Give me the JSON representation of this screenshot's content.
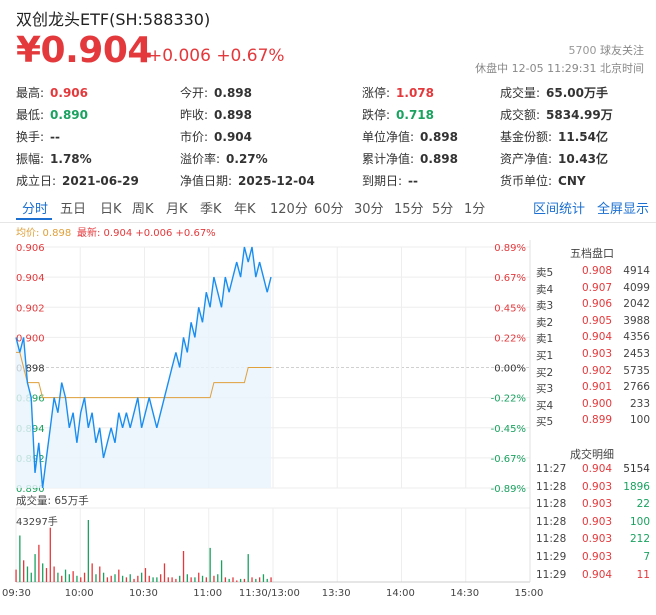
{
  "header": {
    "title": "双创龙头ETF(SH:588330)",
    "price": "¥0.904",
    "change": "+0.006 +0.67%",
    "followers_count": "5700",
    "followers_label": "球友关注",
    "status": "休盘中 12-05 11:29:31 北京时间"
  },
  "stats": [
    {
      "label": "最高:",
      "value": "0.906",
      "color": "#e4393c"
    },
    {
      "label": "今开:",
      "value": "0.898",
      "color": "#333333"
    },
    {
      "label": "涨停:",
      "value": "1.078",
      "color": "#e4393c"
    },
    {
      "label": "成交量:",
      "value": "65.00万手",
      "color": "#333333"
    },
    {
      "label": "最低:",
      "value": "0.890",
      "color": "#1aa260"
    },
    {
      "label": "昨收:",
      "value": "0.898",
      "color": "#333333"
    },
    {
      "label": "跌停:",
      "value": "0.718",
      "color": "#1aa260"
    },
    {
      "label": "成交额:",
      "value": "5834.99万",
      "color": "#333333"
    },
    {
      "label": "换手:",
      "value": "--",
      "color": "#333333"
    },
    {
      "label": "市价:",
      "value": "0.904",
      "color": "#333333"
    },
    {
      "label": "单位净值:",
      "value": "0.898",
      "color": "#333333"
    },
    {
      "label": "基金份额:",
      "value": "11.54亿",
      "color": "#333333"
    },
    {
      "label": "振幅:",
      "value": "1.78%",
      "color": "#333333"
    },
    {
      "label": "溢价率:",
      "value": "0.27%",
      "color": "#333333"
    },
    {
      "label": "累计净值:",
      "value": "0.898",
      "color": "#333333"
    },
    {
      "label": "资产净值:",
      "value": "10.43亿",
      "color": "#333333"
    },
    {
      "label": "成立日:",
      "value": "2021-06-29",
      "color": "#333333"
    },
    {
      "label": "净值日期:",
      "value": "2025-12-04",
      "color": "#333333"
    },
    {
      "label": "到期日:",
      "value": "--",
      "color": "#333333"
    },
    {
      "label": "货币单位:",
      "value": "CNY",
      "color": "#333333"
    }
  ],
  "tabs": [
    "分时",
    "五日",
    "日K",
    "周K",
    "月K",
    "季K",
    "年K",
    "120分",
    "60分",
    "30分",
    "15分",
    "5分",
    "1分"
  ],
  "active_tab": "分时",
  "tab_links": [
    "区间统计",
    "全屏显示"
  ],
  "chart_legend": {
    "avg": "均价: 0.898",
    "latest": "最新: 0.904 +0.006 +0.67%"
  },
  "volume_label": "成交量: 65万手",
  "volume_max": "43297手",
  "orderbook": {
    "title": "五档盘口",
    "rows": [
      {
        "label": "卖5",
        "price": "0.908",
        "qty": "4914"
      },
      {
        "label": "卖4",
        "price": "0.907",
        "qty": "4099"
      },
      {
        "label": "卖3",
        "price": "0.906",
        "qty": "2042"
      },
      {
        "label": "卖2",
        "price": "0.905",
        "qty": "3988"
      },
      {
        "label": "卖1",
        "price": "0.904",
        "qty": "4356"
      },
      {
        "label": "买1",
        "price": "0.903",
        "qty": "2453"
      },
      {
        "label": "买2",
        "price": "0.902",
        "qty": "5735"
      },
      {
        "label": "买3",
        "price": "0.901",
        "qty": "2766"
      },
      {
        "label": "买4",
        "price": "0.900",
        "qty": "233"
      },
      {
        "label": "买5",
        "price": "0.899",
        "qty": "100"
      }
    ]
  },
  "trades": {
    "title": "成交明细",
    "rows": [
      {
        "time": "11:27",
        "price": "0.904",
        "qty": "5154",
        "color": "#333333"
      },
      {
        "time": "11:28",
        "price": "0.903",
        "qty": "1896",
        "color": "#1aa260"
      },
      {
        "time": "11:28",
        "price": "0.903",
        "qty": "22",
        "color": "#1aa260"
      },
      {
        "time": "11:28",
        "price": "0.903",
        "qty": "100",
        "color": "#1aa260"
      },
      {
        "time": "11:28",
        "price": "0.903",
        "qty": "212",
        "color": "#1aa260"
      },
      {
        "time": "11:29",
        "price": "0.903",
        "qty": "7",
        "color": "#1aa260"
      },
      {
        "time": "11:29",
        "price": "0.904",
        "qty": "11",
        "color": "#e4393c"
      }
    ]
  },
  "colors": {
    "up": "#e4393c",
    "down": "#1aa260",
    "accent": "#1a6fd1",
    "avg_line": "#e0a03a"
  },
  "chart_data": {
    "type": "line",
    "y_ticks": [
      "0.906",
      "0.904",
      "0.902",
      "0.900",
      "0.898",
      "0.896",
      "0.894",
      "0.892",
      "0.890"
    ],
    "pct_ticks": [
      "0.89%",
      "0.67%",
      "0.45%",
      "0.22%",
      "0.00%",
      "-0.22%",
      "-0.45%",
      "-0.67%",
      "-0.89%"
    ],
    "x_ticks": [
      "09:30",
      "10:00",
      "10:30",
      "11:00",
      "11:30/13:00",
      "13:30",
      "14:00",
      "14:30",
      "15:00"
    ],
    "ylim": [
      0.89,
      0.906
    ],
    "prev_close": 0.898,
    "price_series": [
      0.9,
      0.899,
      0.9,
      0.897,
      0.896,
      0.891,
      0.893,
      0.89,
      0.892,
      0.894,
      0.896,
      0.895,
      0.897,
      0.896,
      0.894,
      0.895,
      0.893,
      0.895,
      0.896,
      0.894,
      0.895,
      0.893,
      0.894,
      0.892,
      0.893,
      0.894,
      0.893,
      0.895,
      0.894,
      0.895,
      0.894,
      0.895,
      0.896,
      0.894,
      0.895,
      0.896,
      0.895,
      0.894,
      0.895,
      0.896,
      0.897,
      0.898,
      0.899,
      0.898,
      0.9,
      0.899,
      0.901,
      0.9,
      0.902,
      0.901,
      0.903,
      0.902,
      0.904,
      0.903,
      0.902,
      0.904,
      0.903,
      0.904,
      0.905,
      0.904,
      0.906,
      0.905,
      0.906,
      0.904,
      0.905,
      0.904,
      0.903,
      0.904
    ],
    "avg_series": [
      0.899,
      0.899,
      0.898,
      0.897,
      0.897,
      0.897,
      0.897,
      0.896,
      0.896,
      0.896,
      0.896,
      0.896,
      0.896,
      0.896,
      0.896,
      0.896,
      0.896,
      0.896,
      0.896,
      0.896,
      0.896,
      0.896,
      0.896,
      0.896,
      0.896,
      0.896,
      0.896,
      0.896,
      0.896,
      0.896,
      0.896,
      0.896,
      0.896,
      0.896,
      0.896,
      0.896,
      0.896,
      0.896,
      0.896,
      0.896,
      0.896,
      0.896,
      0.896,
      0.896,
      0.896,
      0.896,
      0.896,
      0.896,
      0.896,
      0.896,
      0.896,
      0.896,
      0.897,
      0.897,
      0.897,
      0.897,
      0.897,
      0.897,
      0.897,
      0.897,
      0.897,
      0.898,
      0.898,
      0.898,
      0.898,
      0.898,
      0.898,
      0.898
    ],
    "volume_series": [
      8,
      30,
      14,
      10,
      6,
      18,
      24,
      12,
      9,
      35,
      10,
      6,
      4,
      8,
      5,
      7,
      4,
      3,
      6,
      40,
      12,
      5,
      10,
      6,
      3,
      4,
      5,
      8,
      4,
      3,
      5,
      2,
      4,
      6,
      9,
      4,
      3,
      3,
      5,
      12,
      3,
      3,
      2,
      4,
      20,
      5,
      3,
      3,
      6,
      4,
      3,
      22,
      4,
      5,
      14,
      3,
      2,
      3,
      1,
      2,
      2,
      18,
      3,
      2,
      3,
      5,
      2,
      3
    ],
    "volume_max": 43297
  }
}
